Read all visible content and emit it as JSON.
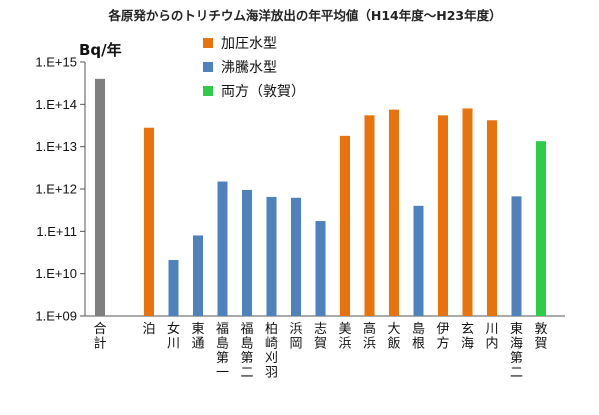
{
  "chart_data": {
    "type": "bar",
    "title": "各原発からのトリチウム海洋放出の年平均値（H14年度～H23年度）",
    "ylabel": "Bq/年",
    "scale": "log",
    "ylim": [
      1000000000,
      1000000000000000
    ],
    "y_ticks": [
      "1.E+15",
      "1.E+14",
      "1.E+13",
      "1.E+12",
      "1.E+11",
      "1.E+10",
      "1.E+09"
    ],
    "y_tick_values": [
      1000000000000000.0,
      100000000000000.0,
      10000000000000.0,
      1000000000000.0,
      100000000000.0,
      10000000000.0,
      1000000000.0
    ],
    "grid": false,
    "legend_position": "top-left",
    "legend": [
      {
        "label": "加圧水型",
        "color": "#E8720C"
      },
      {
        "label": "沸騰水型",
        "color": "#4F81BD"
      },
      {
        "label": "両方（敦賀）",
        "color": "#2ECC4A"
      }
    ],
    "total_color": "#7F7F7F",
    "categories": [
      "合計",
      "",
      "泊",
      "女川",
      "東通",
      "福島第一",
      "福島第二",
      "柏崎刈羽",
      "浜岡",
      "志賀",
      "美浜",
      "高浜",
      "大飯",
      "島根",
      "伊方",
      "玄海",
      "川内",
      "東海第二",
      "敦賀"
    ],
    "values": [
      400000000000000.0,
      null,
      28000000000000.0,
      21000000000.0,
      80000000000.0,
      1500000000000.0,
      950000000000.0,
      650000000000.0,
      620000000000.0,
      175000000000.0,
      18000000000000.0,
      55000000000000.0,
      75000000000000.0,
      400000000000.0,
      55000000000000.0,
      80000000000000.0,
      42000000000000.0,
      670000000000.0,
      13500000000000.0
    ],
    "bar_colors": [
      "#7F7F7F",
      null,
      "#E8720C",
      "#4F81BD",
      "#4F81BD",
      "#4F81BD",
      "#4F81BD",
      "#4F81BD",
      "#4F81BD",
      "#4F81BD",
      "#E8720C",
      "#E8720C",
      "#E8720C",
      "#4F81BD",
      "#E8720C",
      "#E8720C",
      "#E8720C",
      "#4F81BD",
      "#2ECC4A"
    ]
  }
}
